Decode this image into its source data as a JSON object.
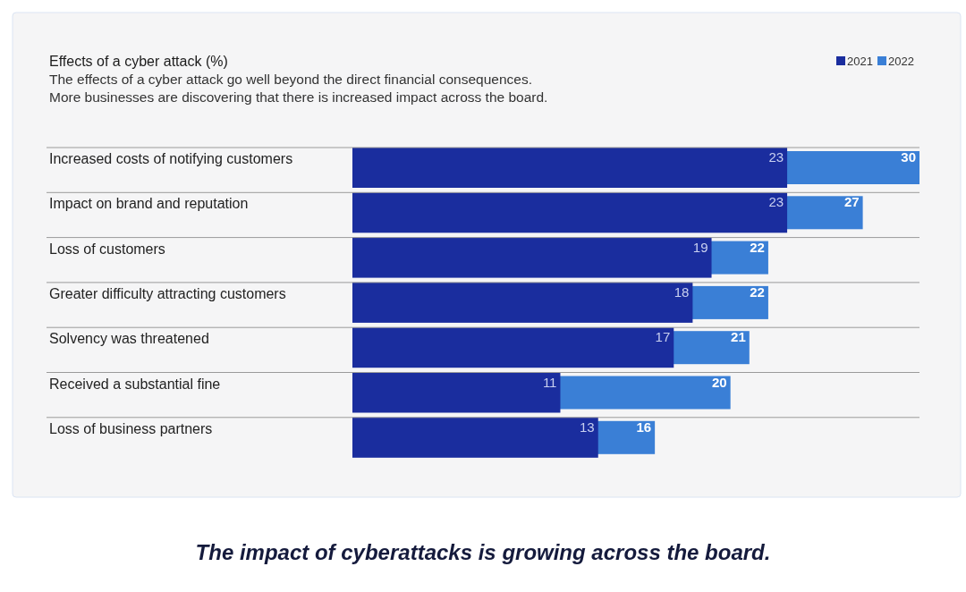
{
  "chart_data": {
    "type": "bar",
    "orientation": "horizontal",
    "title": "Effects of a cyber attack (%)",
    "subtitle": "The effects of a cyber attack go well beyond the direct financial consequences.\nMore businesses are discovering that there is increased impact across the board.",
    "categories": [
      "Increased costs of notifying customers",
      "Impact on brand and reputation",
      "Loss of customers",
      "Greater difficulty attracting customers",
      "Solvency was threatened",
      "Received a substantial fine",
      "Loss of business partners"
    ],
    "series": [
      {
        "name": "2021",
        "color": "#1a2d9e",
        "values": [
          23,
          23,
          19,
          18,
          17,
          11,
          13
        ]
      },
      {
        "name": "2022",
        "color": "#3a7fd6",
        "values": [
          30,
          27,
          22,
          22,
          21,
          20,
          16
        ]
      }
    ],
    "data_labels": true,
    "legend": "top right",
    "grid": "y",
    "annotations": [
      "The impact of cyberattacks is growing across the board."
    ]
  }
}
